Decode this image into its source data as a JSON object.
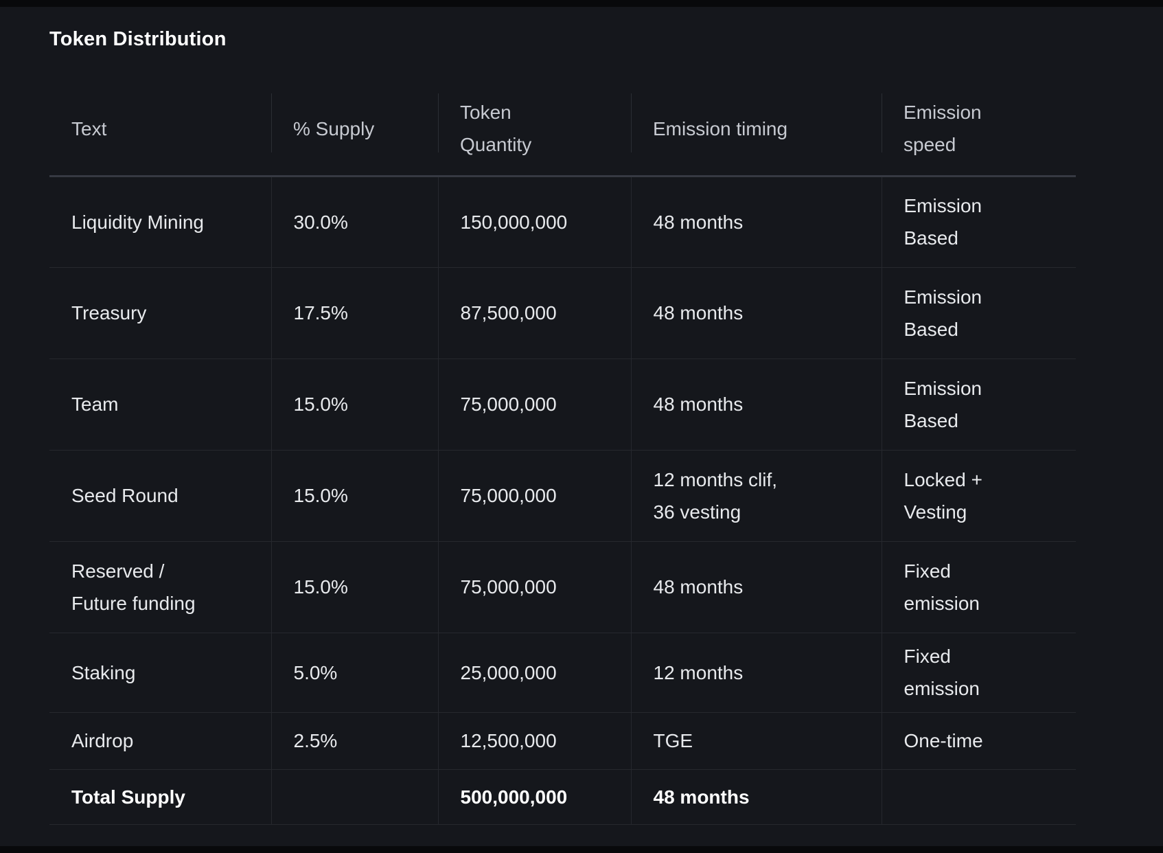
{
  "title": "Token Distribution",
  "display": {
    "columns": [
      "Text",
      "% Supply",
      "Token\nQuantity",
      "Emission timing",
      "Emission\nspeed"
    ],
    "rows": [
      {
        "text": "Liquidity Mining",
        "supply": "30.0%",
        "quantity": "150,000,000",
        "timing": "48 months",
        "speed": "Emission\nBased"
      },
      {
        "text": "Treasury",
        "supply": "17.5%",
        "quantity": "87,500,000",
        "timing": "48 months",
        "speed": "Emission\nBased"
      },
      {
        "text": "Team",
        "supply": "15.0%",
        "quantity": "75,000,000",
        "timing": "48 months",
        "speed": "Emission\nBased"
      },
      {
        "text": "Seed Round",
        "supply": "15.0%",
        "quantity": "75,000,000",
        "timing": "12 months clif,\n36 vesting",
        "speed": "Locked +\nVesting"
      },
      {
        "text": "Reserved /\nFuture funding",
        "supply": "15.0%",
        "quantity": "75,000,000",
        "timing": "48 months",
        "speed": "Fixed\nemission"
      },
      {
        "text": "Staking",
        "supply": "5.0%",
        "quantity": "25,000,000",
        "timing": "12 months",
        "speed": "Fixed\nemission"
      },
      {
        "text": "Airdrop",
        "supply": "2.5%",
        "quantity": "12,500,000",
        "timing": "TGE",
        "speed": "One-time"
      },
      {
        "text": "Total Supply",
        "supply": "",
        "quantity": "500,000,000",
        "timing": "48 months",
        "speed": ""
      }
    ]
  },
  "chart_data": {
    "type": "table",
    "title": "Token Distribution",
    "columns": [
      "Text",
      "% Supply",
      "Token Quantity",
      "Emission timing",
      "Emission speed"
    ],
    "rows": [
      [
        "Liquidity Mining",
        "30.0%",
        "150,000,000",
        "48 months",
        "Emission Based"
      ],
      [
        "Treasury",
        "17.5%",
        "87,500,000",
        "48 months",
        "Emission Based"
      ],
      [
        "Team",
        "15.0%",
        "75,000,000",
        "48 months",
        "Emission Based"
      ],
      [
        "Seed Round",
        "15.0%",
        "75,000,000",
        "12 months clif, 36 vesting",
        "Locked + Vesting"
      ],
      [
        "Reserved / Future funding",
        "15.0%",
        "75,000,000",
        "48 months",
        "Fixed emission"
      ],
      [
        "Staking",
        "5.0%",
        "25,000,000",
        "12 months",
        "Fixed emission"
      ],
      [
        "Airdrop",
        "2.5%",
        "12,500,000",
        "TGE",
        "One-time"
      ],
      [
        "Total Supply",
        "",
        "500,000,000",
        "48 months",
        ""
      ]
    ],
    "supply_percent": [
      30.0,
      17.5,
      15.0,
      15.0,
      15.0,
      5.0,
      2.5
    ],
    "token_quantity": [
      150000000,
      87500000,
      75000000,
      75000000,
      75000000,
      25000000,
      12500000
    ],
    "total_supply": 500000000
  },
  "colors": {
    "background": "#15171c",
    "edge_strip": "#08090b",
    "row_border": "#26282e",
    "header_underline": "#363942",
    "header_text": "#c7cad1",
    "body_text": "#e8eaed",
    "title_text": "#ffffff"
  }
}
